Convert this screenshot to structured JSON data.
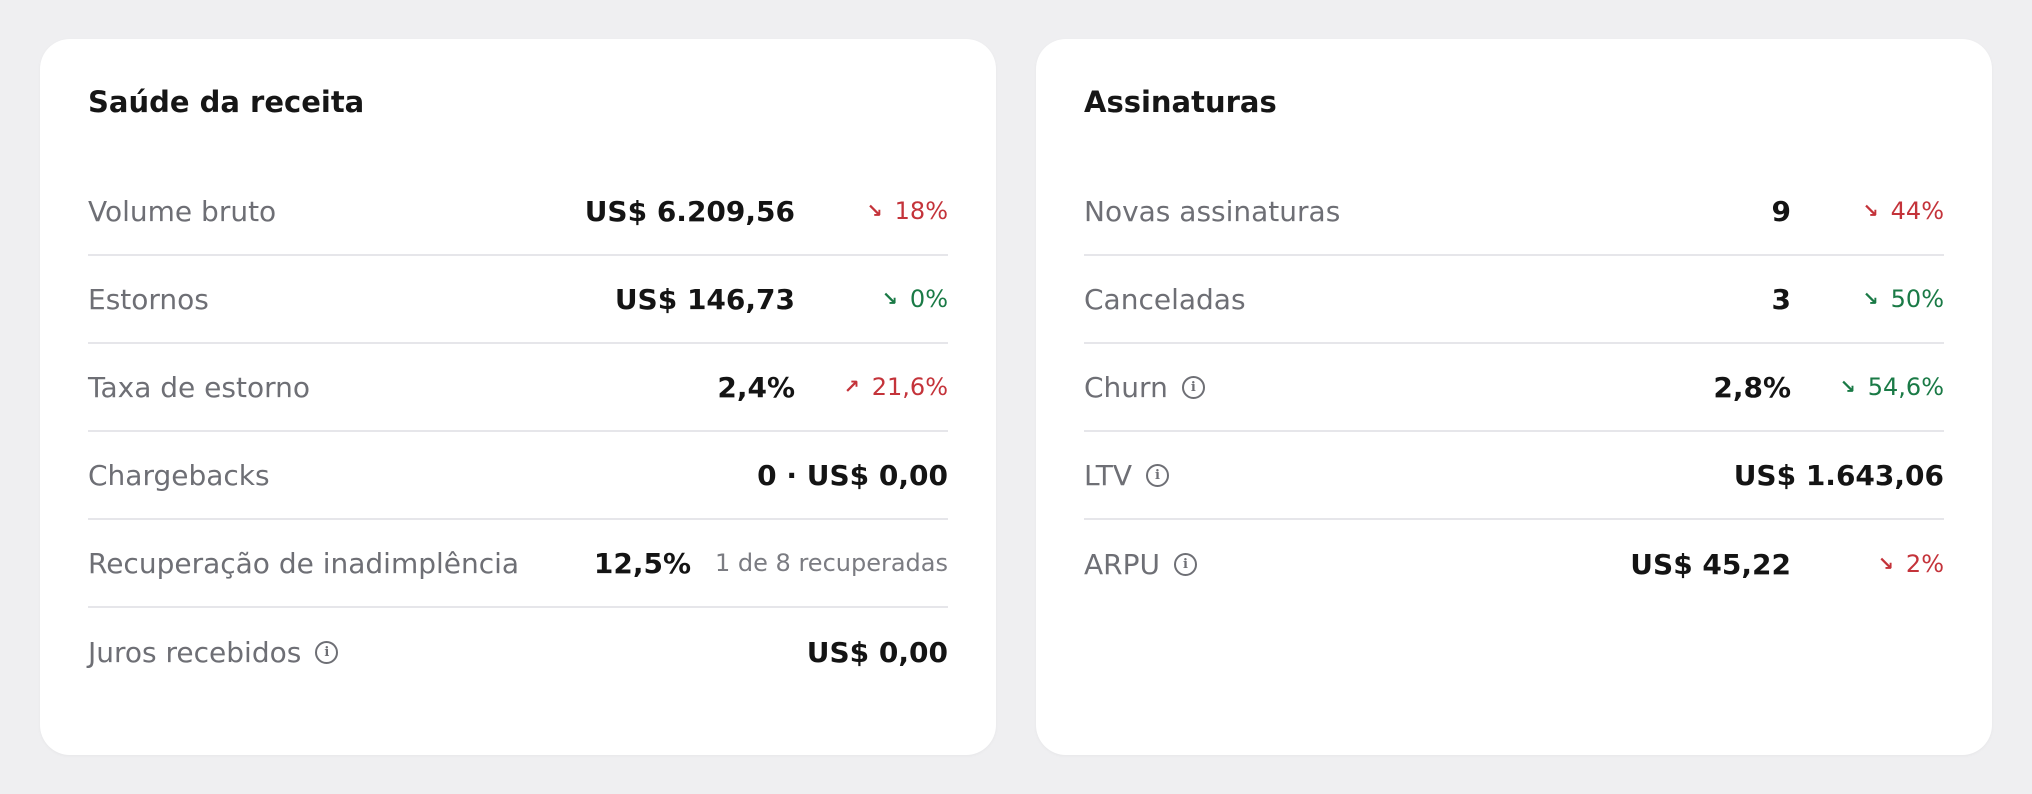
{
  "revenue_health": {
    "title": "Saúde da receita",
    "rows": [
      {
        "label": "Volume bruto",
        "value": "US$ 6.209,56",
        "delta": "18%",
        "delta_direction": "down",
        "delta_color": "#c4333a"
      },
      {
        "label": "Estornos",
        "value": "US$ 146,73",
        "delta": "0%",
        "delta_direction": "down",
        "delta_color": "#1a7a46"
      },
      {
        "label": "Taxa de estorno",
        "value": "2,4%",
        "delta": "21,6%",
        "delta_direction": "up",
        "delta_color": "#c4333a"
      },
      {
        "label": "Chargebacks",
        "value": "0 · US$ 0,00"
      },
      {
        "label": "Recuperação de inadimplência",
        "value": "12,5%",
        "sub": "1 de 8 recuperadas"
      },
      {
        "label": "Juros recebidos",
        "value": "US$ 0,00",
        "info_icon": "info-icon"
      }
    ]
  },
  "subscriptions": {
    "title": "Assinaturas",
    "rows": [
      {
        "label": "Novas assinaturas",
        "value": "9",
        "delta": "44%",
        "delta_direction": "down",
        "delta_color": "#c4333a"
      },
      {
        "label": "Canceladas",
        "value": "3",
        "delta": "50%",
        "delta_direction": "down",
        "delta_color": "#1a7a46"
      },
      {
        "label": "Churn",
        "value": "2,8%",
        "delta": "54,6%",
        "delta_direction": "down",
        "delta_color": "#1a7a46",
        "info_icon": "info-icon"
      },
      {
        "label": "LTV",
        "value": "US$ 1.643,06",
        "info_icon": "info-icon"
      },
      {
        "label": "ARPU",
        "value": "US$ 45,22",
        "delta": "2%",
        "delta_direction": "down",
        "delta_color": "#c4333a",
        "info_icon": "info-icon"
      }
    ]
  },
  "icons": {
    "arrow_down": "↘",
    "arrow_up": "↗",
    "info": "i"
  }
}
